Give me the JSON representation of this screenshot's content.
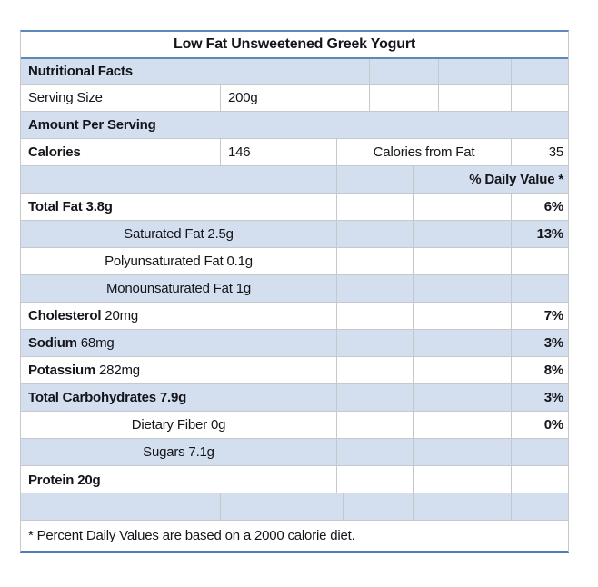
{
  "title": "Low Fat Unsweetened Greek Yogurt",
  "header": {
    "nutritional_facts_label": "Nutritional Facts",
    "serving_size_label": "Serving Size",
    "serving_size_value": "200g",
    "amount_per_serving_label": "Amount Per Serving",
    "calories_label": "Calories",
    "calories_value": "146",
    "calories_from_fat_label": "Calories from Fat",
    "calories_from_fat_value": "35",
    "daily_value_header": "% Daily Value *"
  },
  "nutrients": [
    {
      "bold": "Total Fat 3.8g",
      "regular": "",
      "align": "left",
      "daily_value": "6%"
    },
    {
      "bold": "",
      "regular": "Saturated Fat 2.5g",
      "align": "center",
      "daily_value": "13%"
    },
    {
      "bold": "",
      "regular": "Polyunsaturated Fat 0.1g",
      "align": "center",
      "daily_value": ""
    },
    {
      "bold": "",
      "regular": "Monounsaturated Fat 1g",
      "align": "center",
      "daily_value": ""
    },
    {
      "bold": "Cholesterol",
      "regular": " 20mg",
      "align": "left",
      "daily_value": "7%"
    },
    {
      "bold": "Sodium",
      "regular": " 68mg",
      "align": "left",
      "daily_value": "3%"
    },
    {
      "bold": "Potassium",
      "regular": " 282mg",
      "align": "left",
      "daily_value": "8%"
    },
    {
      "bold": "Total Carbohydrates 7.9g",
      "regular": "",
      "align": "left",
      "daily_value": "3%"
    },
    {
      "bold": "",
      "regular": "Dietary Fiber 0g",
      "align": "center",
      "daily_value": "0%"
    },
    {
      "bold": "",
      "regular": "Sugars 7.1g",
      "align": "center",
      "daily_value": ""
    },
    {
      "bold": "Protein 20g",
      "regular": "",
      "align": "left",
      "daily_value": ""
    }
  ],
  "footnote": "* Percent Daily Values are based on a 2000 calorie diet.",
  "colors": {
    "band_blue": "#d3dfee",
    "grid_gray": "#c5c8cd",
    "border_blue": "#5e88ba",
    "border_blue_dark": "#4d7db8",
    "text": "#14141a"
  }
}
